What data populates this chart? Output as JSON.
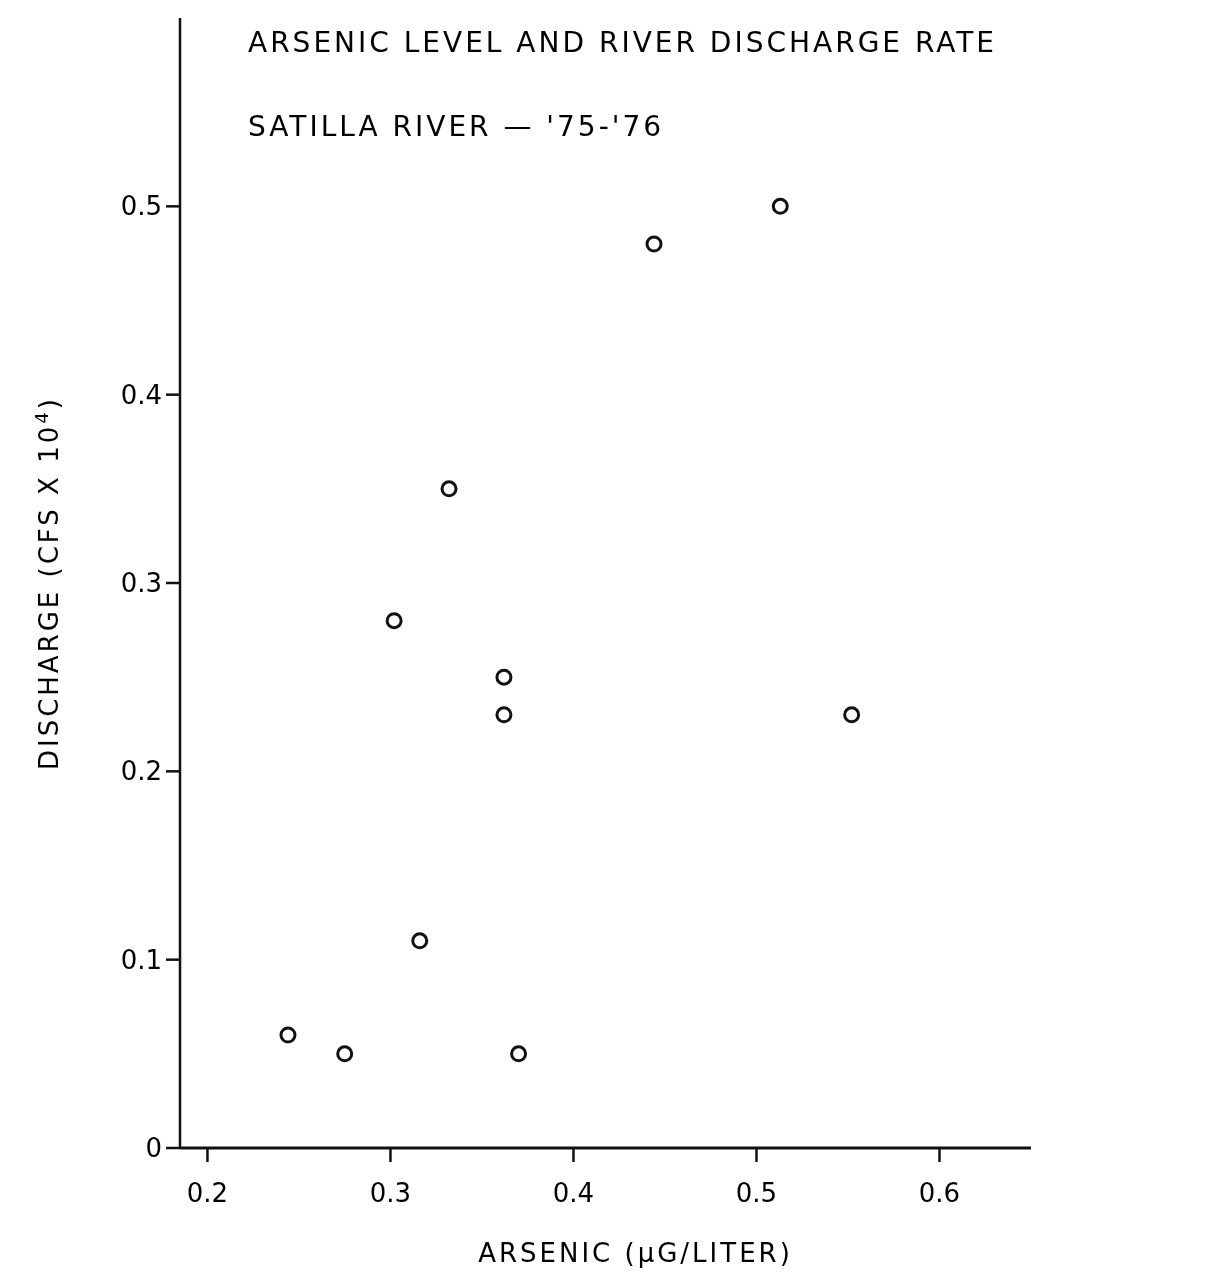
{
  "chart_data": {
    "type": "scatter",
    "title": "ARSENIC LEVEL AND RIVER DISCHARGE RATE",
    "subtitle": "SATILLA RIVER — '75-'76",
    "xlabel": "ARSENIC (µG/LITER)",
    "ylabel": "DISCHARGE (CFS X 10$^{4}$)",
    "x": [
      0.244,
      0.275,
      0.302,
      0.316,
      0.332,
      0.362,
      0.362,
      0.37,
      0.444,
      0.513,
      0.552
    ],
    "values": [
      0.06,
      0.05,
      0.28,
      0.11,
      0.35,
      0.25,
      0.23,
      0.05,
      0.48,
      0.5,
      0.23
    ],
    "color": "#111111",
    "marker": "circle",
    "xlim": [
      0.185,
      0.65
    ],
    "ylim": [
      0,
      0.6
    ],
    "xticks": [
      0.2,
      0.3,
      0.4,
      0.5,
      0.6
    ],
    "yticks": [
      0,
      0.1,
      0.2,
      0.3,
      0.4,
      0.5
    ],
    "grid": false,
    "legend": false
  }
}
